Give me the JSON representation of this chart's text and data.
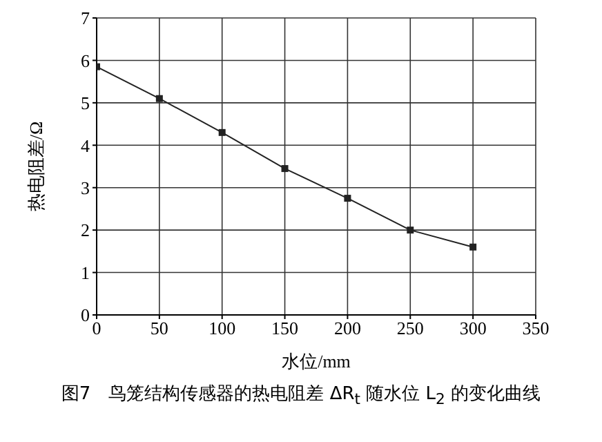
{
  "chart_data": {
    "type": "line",
    "title": "图7　鸟笼结构传感器的热电阻差 ΔR$_{t}$ 随水位 L$_{2}$ 的变化曲线",
    "xlabel": "水位/mm",
    "ylabel": "热电阻差/Ω",
    "x": [
      0,
      50,
      100,
      150,
      200,
      250,
      300
    ],
    "series": [
      {
        "color": "#222222",
        "values": [
          5.85,
          5.1,
          4.3,
          3.45,
          2.75,
          2.0,
          1.6
        ]
      }
    ],
    "xlim": [
      0,
      350
    ],
    "xticks": [
      0,
      50,
      100,
      150,
      200,
      250,
      300,
      350
    ],
    "ylim": [
      0,
      7
    ],
    "yticks": [
      0,
      1,
      2,
      3,
      4,
      5,
      6,
      7
    ],
    "grid": true,
    "marker": "square",
    "line_style": "solid"
  }
}
